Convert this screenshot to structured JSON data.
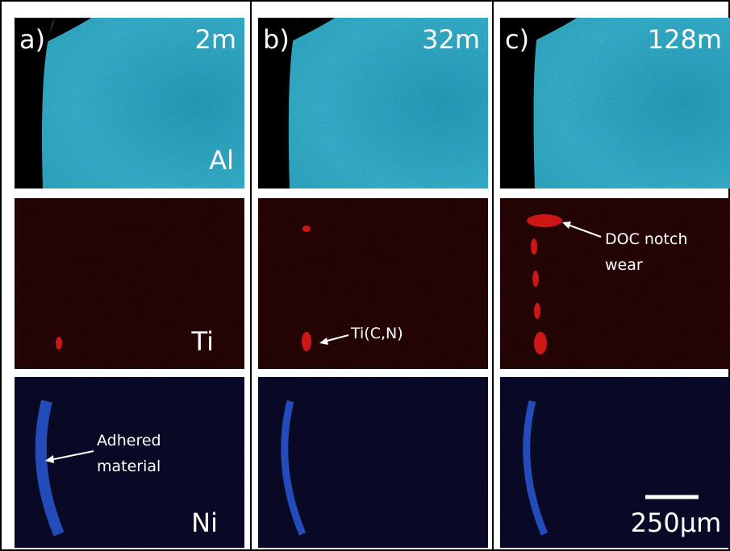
{
  "columns": [
    {
      "label": "a)",
      "time": "2m"
    },
    {
      "label": "b)",
      "time": "32m"
    },
    {
      "label": "c)",
      "time": "128m"
    }
  ],
  "elements": [
    "Al",
    "Ti",
    "Ni"
  ],
  "annotations": {
    "adhered": [
      "Adhered",
      "material"
    ],
    "ticn": "Ti(C,N)",
    "doc": [
      "DOC notch",
      "wear"
    ]
  },
  "scale_bar": "250μm"
}
